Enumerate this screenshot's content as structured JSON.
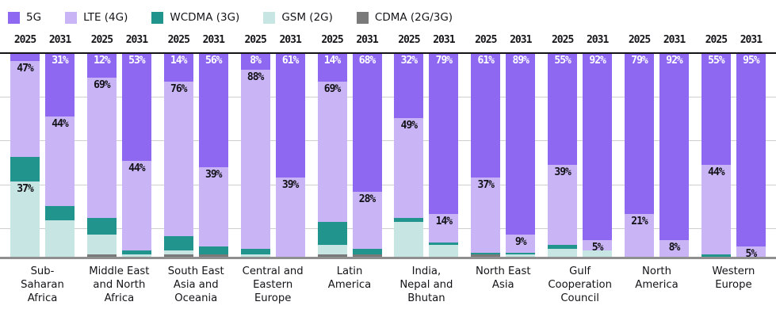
{
  "legend": {
    "items": [
      {
        "id": "5g",
        "label": "5G",
        "color": "#8f68f2"
      },
      {
        "id": "lte",
        "label": "LTE (4G)",
        "color": "#c9b5f5"
      },
      {
        "id": "wcdma",
        "label": "WCDMA (3G)",
        "color": "#21948d"
      },
      {
        "id": "gsm",
        "label": "GSM (2G)",
        "color": "#c7e5e3"
      },
      {
        "id": "cdma",
        "label": "CDMA (2G/3G)",
        "color": "#7a7a7a"
      }
    ]
  },
  "chart_data": {
    "type": "bar",
    "stacked": true,
    "unit": "percent share of mobile subscriptions",
    "ylim": [
      0,
      100
    ],
    "grid": true,
    "gridline_fractions_from_top": [
      0.214,
      0.428,
      0.646,
      0.86
    ],
    "legend_position": "top-left",
    "colors": {
      "5g": "#8f68f2",
      "lte": "#c9b5f5",
      "wcdma": "#21948d",
      "gsm": "#c7e5e3",
      "cdma": "#7a7a7a"
    },
    "series_order_top_to_bottom": [
      "5g",
      "lte",
      "wcdma",
      "gsm",
      "cdma"
    ],
    "groups": [
      {
        "region": "Sub-\nSaharan\nAfrica",
        "bars": [
          {
            "year": "2025",
            "segments": [
              {
                "tech": "5g",
                "value": 4
              },
              {
                "tech": "lte",
                "value": 47,
                "label": "47%"
              },
              {
                "tech": "wcdma",
                "value": 12
              },
              {
                "tech": "gsm",
                "value": 37,
                "label": "37%"
              }
            ]
          },
          {
            "year": "2031",
            "segments": [
              {
                "tech": "5g",
                "value": 31,
                "label": "31%"
              },
              {
                "tech": "lte",
                "value": 44,
                "label": "44%"
              },
              {
                "tech": "wcdma",
                "value": 7
              },
              {
                "tech": "gsm",
                "value": 18
              }
            ]
          }
        ]
      },
      {
        "region": "Middle East\nand North\nAfrica",
        "bars": [
          {
            "year": "2025",
            "segments": [
              {
                "tech": "5g",
                "value": 12,
                "label": "12%"
              },
              {
                "tech": "lte",
                "value": 69,
                "label": "69%"
              },
              {
                "tech": "wcdma",
                "value": 8
              },
              {
                "tech": "gsm",
                "value": 10
              },
              {
                "tech": "cdma",
                "value": 1
              }
            ]
          },
          {
            "year": "2031",
            "segments": [
              {
                "tech": "5g",
                "value": 53,
                "label": "53%"
              },
              {
                "tech": "lte",
                "value": 44,
                "label": "44%"
              },
              {
                "tech": "wcdma",
                "value": 2
              },
              {
                "tech": "gsm",
                "value": 1
              }
            ]
          }
        ]
      },
      {
        "region": "South East\nAsia and\nOceania",
        "bars": [
          {
            "year": "2025",
            "segments": [
              {
                "tech": "5g",
                "value": 14,
                "label": "14%"
              },
              {
                "tech": "lte",
                "value": 76,
                "label": "76%"
              },
              {
                "tech": "wcdma",
                "value": 7
              },
              {
                "tech": "gsm",
                "value": 2
              },
              {
                "tech": "cdma",
                "value": 1
              }
            ]
          },
          {
            "year": "2031",
            "segments": [
              {
                "tech": "5g",
                "value": 56,
                "label": "56%"
              },
              {
                "tech": "lte",
                "value": 39,
                "label": "39%"
              },
              {
                "tech": "wcdma",
                "value": 4
              },
              {
                "tech": "cdma",
                "value": 1
              }
            ]
          }
        ]
      },
      {
        "region": "Central and\nEastern\nEurope",
        "bars": [
          {
            "year": "2025",
            "segments": [
              {
                "tech": "5g",
                "value": 8,
                "label": "8%"
              },
              {
                "tech": "lte",
                "value": 88,
                "label": "88%"
              },
              {
                "tech": "wcdma",
                "value": 3
              },
              {
                "tech": "gsm",
                "value": 1
              }
            ]
          },
          {
            "year": "2031",
            "segments": [
              {
                "tech": "5g",
                "value": 61,
                "label": "61%"
              },
              {
                "tech": "lte",
                "value": 39,
                "label": "39%"
              }
            ]
          }
        ]
      },
      {
        "region": "Latin\nAmerica",
        "bars": [
          {
            "year": "2025",
            "segments": [
              {
                "tech": "5g",
                "value": 14,
                "label": "14%"
              },
              {
                "tech": "lte",
                "value": 69,
                "label": "69%"
              },
              {
                "tech": "wcdma",
                "value": 11
              },
              {
                "tech": "gsm",
                "value": 5
              },
              {
                "tech": "cdma",
                "value": 1
              }
            ]
          },
          {
            "year": "2031",
            "segments": [
              {
                "tech": "5g",
                "value": 68,
                "label": "68%"
              },
              {
                "tech": "lte",
                "value": 28,
                "label": "28%"
              },
              {
                "tech": "wcdma",
                "value": 3
              },
              {
                "tech": "cdma",
                "value": 1
              }
            ]
          }
        ]
      },
      {
        "region": "India,\nNepal and\nBhutan",
        "bars": [
          {
            "year": "2025",
            "segments": [
              {
                "tech": "5g",
                "value": 32,
                "label": "32%"
              },
              {
                "tech": "lte",
                "value": 49,
                "label": "49%"
              },
              {
                "tech": "wcdma",
                "value": 2
              },
              {
                "tech": "gsm",
                "value": 17
              }
            ]
          },
          {
            "year": "2031",
            "segments": [
              {
                "tech": "5g",
                "value": 79,
                "label": "79%"
              },
              {
                "tech": "lte",
                "value": 14,
                "label": "14%"
              },
              {
                "tech": "wcdma",
                "value": 1
              },
              {
                "tech": "gsm",
                "value": 6
              }
            ]
          }
        ]
      },
      {
        "region": "North East\nAsia",
        "bars": [
          {
            "year": "2025",
            "segments": [
              {
                "tech": "5g",
                "value": 61,
                "label": "61%"
              },
              {
                "tech": "lte",
                "value": 37,
                "label": "37%"
              },
              {
                "tech": "wcdma",
                "value": 1
              },
              {
                "tech": "cdma",
                "value": 1
              }
            ]
          },
          {
            "year": "2031",
            "segments": [
              {
                "tech": "5g",
                "value": 89,
                "label": "89%"
              },
              {
                "tech": "lte",
                "value": 9,
                "label": "9%"
              },
              {
                "tech": "wcdma",
                "value": 1
              },
              {
                "tech": "gsm",
                "value": 1
              }
            ]
          }
        ]
      },
      {
        "region": "Gulf\nCooperation\nCouncil",
        "bars": [
          {
            "year": "2025",
            "segments": [
              {
                "tech": "5g",
                "value": 55,
                "label": "55%"
              },
              {
                "tech": "lte",
                "value": 39,
                "label": "39%"
              },
              {
                "tech": "wcdma",
                "value": 2
              },
              {
                "tech": "gsm",
                "value": 4
              }
            ]
          },
          {
            "year": "2031",
            "segments": [
              {
                "tech": "5g",
                "value": 92,
                "label": "92%"
              },
              {
                "tech": "lte",
                "value": 5,
                "label": "5%"
              },
              {
                "tech": "gsm",
                "value": 3
              }
            ]
          }
        ]
      },
      {
        "region": "North\nAmerica",
        "bars": [
          {
            "year": "2025",
            "segments": [
              {
                "tech": "5g",
                "value": 79,
                "label": "79%"
              },
              {
                "tech": "lte",
                "value": 21,
                "label": "21%"
              }
            ]
          },
          {
            "year": "2031",
            "segments": [
              {
                "tech": "5g",
                "value": 92,
                "label": "92%"
              },
              {
                "tech": "lte",
                "value": 8,
                "label": "8%"
              }
            ]
          }
        ]
      },
      {
        "region": "Western\nEurope",
        "bars": [
          {
            "year": "2025",
            "segments": [
              {
                "tech": "5g",
                "value": 55,
                "label": "55%"
              },
              {
                "tech": "lte",
                "value": 44,
                "label": "44%"
              },
              {
                "tech": "wcdma",
                "value": 1
              }
            ]
          },
          {
            "year": "2031",
            "segments": [
              {
                "tech": "5g",
                "value": 95,
                "label": "95%"
              },
              {
                "tech": "lte",
                "value": 5,
                "label": "5%"
              }
            ]
          }
        ]
      }
    ]
  }
}
